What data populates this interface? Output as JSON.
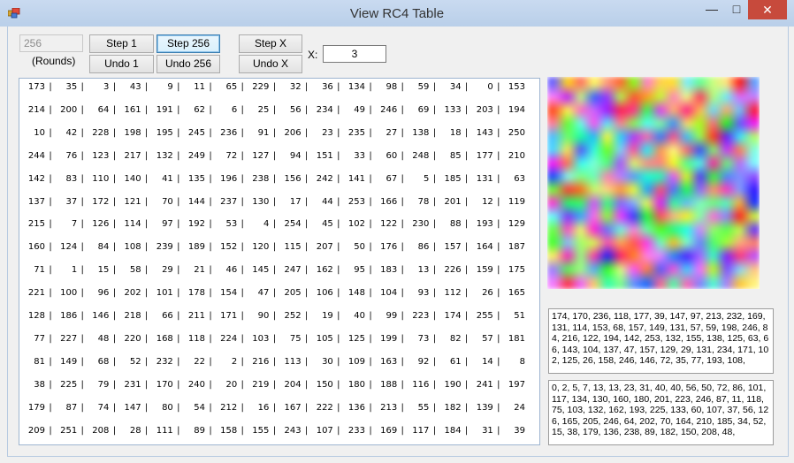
{
  "window": {
    "title": "View RC4 Table"
  },
  "controls": {
    "rounds_value": "256",
    "rounds_label": "(Rounds)",
    "step1_label": "Step 1",
    "step256_label": "Step 256",
    "undo1_label": "Undo 1",
    "undo256_label": "Undo 256",
    "stepx_label": "Step X",
    "undox_label": "Undo X",
    "x_label": "X:",
    "x_value": "3"
  },
  "table": {
    "rows": [
      [
        173,
        35,
        3,
        43,
        9,
        11,
        65,
        229,
        32,
        36,
        134,
        98,
        59,
        34,
        0,
        153
      ],
      [
        214,
        200,
        64,
        161,
        191,
        62,
        6,
        25,
        56,
        234,
        49,
        246,
        69,
        133,
        203,
        194
      ],
      [
        10,
        42,
        228,
        198,
        195,
        245,
        236,
        91,
        206,
        23,
        235,
        27,
        138,
        18,
        143,
        250
      ],
      [
        244,
        76,
        123,
        217,
        132,
        249,
        72,
        127,
        94,
        151,
        33,
        60,
        248,
        85,
        177,
        210
      ],
      [
        142,
        83,
        110,
        140,
        41,
        135,
        196,
        238,
        156,
        242,
        141,
        67,
        5,
        185,
        131,
        63
      ],
      [
        137,
        37,
        172,
        121,
        70,
        144,
        237,
        130,
        17,
        44,
        253,
        166,
        78,
        201,
        12,
        119
      ],
      [
        215,
        7,
        126,
        114,
        97,
        192,
        53,
        4,
        254,
        45,
        102,
        122,
        230,
        88,
        193,
        129
      ],
      [
        160,
        124,
        84,
        108,
        239,
        189,
        152,
        120,
        115,
        207,
        50,
        176,
        86,
        157,
        164,
        187
      ],
      [
        71,
        1,
        15,
        58,
        29,
        21,
        46,
        145,
        247,
        162,
        95,
        183,
        13,
        226,
        159,
        175
      ],
      [
        221,
        100,
        96,
        202,
        101,
        178,
        154,
        47,
        205,
        106,
        148,
        104,
        93,
        112,
        26,
        165
      ],
      [
        128,
        186,
        146,
        218,
        66,
        211,
        171,
        90,
        252,
        19,
        40,
        99,
        223,
        174,
        255,
        51
      ],
      [
        77,
        227,
        48,
        220,
        168,
        118,
        224,
        103,
        75,
        105,
        125,
        199,
        73,
        82,
        57,
        181
      ],
      [
        81,
        149,
        68,
        52,
        232,
        22,
        2,
        216,
        113,
        30,
        109,
        163,
        92,
        61,
        14,
        8
      ],
      [
        38,
        225,
        79,
        231,
        170,
        240,
        20,
        219,
        204,
        150,
        180,
        188,
        116,
        190,
        241,
        197
      ],
      [
        179,
        87,
        74,
        147,
        80,
        54,
        212,
        16,
        167,
        222,
        136,
        213,
        55,
        182,
        139,
        24
      ],
      [
        209,
        251,
        208,
        28,
        111,
        89,
        158,
        155,
        243,
        107,
        233,
        169,
        117,
        184,
        31,
        39
      ]
    ]
  },
  "output_text": "174, 170, 236, 118, 177, 39, 147, 97, 213, 232, 169, 131, 114, 153, 68, 157, 149, 131, 57, 59, 198, 246, 84, 216, 122, 194, 142, 253, 132, 155, 138, 125, 63, 66, 143, 104, 137, 47, 157, 129, 29, 131, 234, 171, 102, 125, 26, 158, 246, 146, 72, 35, 77, 193, 108,",
  "sorted_text": "0, 2, 5, 7, 13, 13, 23, 31, 40, 40, 56, 50, 72, 86, 101, 117, 134, 130, 160, 180, 201, 223, 246, 87, 11, 118, 75, 103, 132, 162, 193, 225, 133, 60, 107, 37, 56, 126, 165, 205, 246, 64, 202, 70, 164, 210, 185, 34, 52, 15, 38, 179, 136, 238, 89, 182, 150, 208, 48,",
  "icons": {
    "app": "app-icon",
    "minimize": "minimize-icon",
    "maximize": "maximize-icon",
    "close": "close-icon"
  }
}
